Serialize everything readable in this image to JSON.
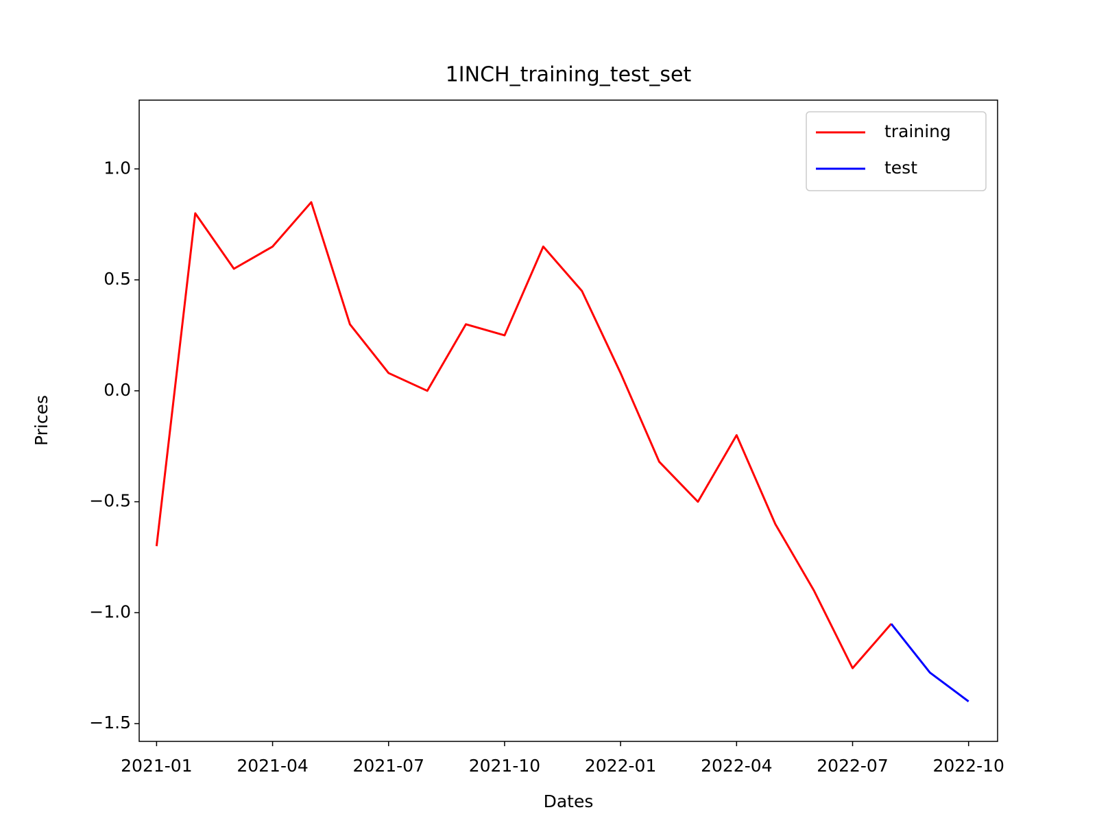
{
  "chart_data": {
    "type": "line",
    "title": "1INCH_training_test_set",
    "xlabel": "Dates",
    "ylabel": "Prices",
    "x": [
      "2021-01",
      "2021-02",
      "2021-03",
      "2021-04",
      "2021-05",
      "2021-06",
      "2021-07",
      "2021-08",
      "2021-09",
      "2021-10",
      "2021-11",
      "2021-12",
      "2022-01",
      "2022-02",
      "2022-03",
      "2022-04",
      "2022-05",
      "2022-06",
      "2022-07",
      "2022-08",
      "2022-09",
      "2022-10"
    ],
    "series": [
      {
        "name": "training",
        "color": "#ff0000",
        "values": [
          -0.7,
          0.8,
          0.55,
          0.65,
          0.85,
          0.3,
          0.08,
          0.0,
          0.3,
          0.25,
          0.65,
          0.45,
          0.08,
          -0.32,
          -0.5,
          -0.2,
          -0.6,
          -0.9,
          -1.25,
          -1.05,
          null,
          null
        ]
      },
      {
        "name": "test",
        "color": "#0000ff",
        "values": [
          null,
          null,
          null,
          null,
          null,
          null,
          null,
          null,
          null,
          null,
          null,
          null,
          null,
          null,
          null,
          null,
          null,
          null,
          null,
          -1.05,
          -1.27,
          -1.4
        ]
      }
    ],
    "xticks": [
      "2021-01",
      "2021-04",
      "2021-07",
      "2021-10",
      "2022-01",
      "2022-04",
      "2022-07",
      "2022-10"
    ],
    "ylim": [
      -1.58,
      1.31
    ],
    "yticks": [
      {
        "value": -1.5,
        "label": "−1.5"
      },
      {
        "value": -1.0,
        "label": "−1.0"
      },
      {
        "value": -0.5,
        "label": "−0.5"
      },
      {
        "value": 0.0,
        "label": "0.0"
      },
      {
        "value": 0.5,
        "label": "0.5"
      },
      {
        "value": 1.0,
        "label": "1.0"
      }
    ],
    "legend": "upper right"
  }
}
